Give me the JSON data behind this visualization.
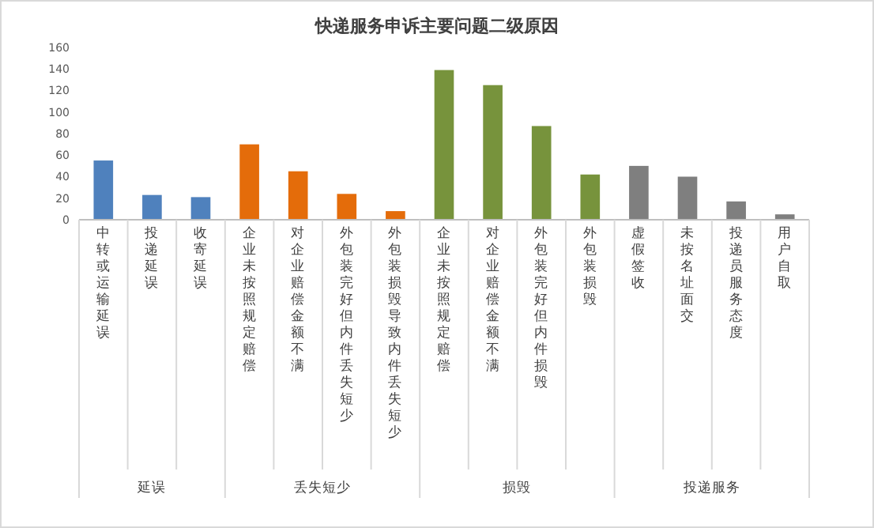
{
  "chart_data": {
    "type": "bar",
    "title": "快递服务申诉主要问题二级原因",
    "categories": [
      "中转或运输延误",
      "投递延误",
      "收寄延误",
      "企业未按照规定赔偿",
      "对企业赔偿金额不满",
      "外包装完好但内件丢失短少",
      "外包装损毁导致内件丢失短少",
      "企业未按照规定赔偿",
      "对企业赔偿金额不满",
      "外包装完好但内件损毁",
      "外包装损毁",
      "虚假签收",
      "未按名址面交",
      "投递员服务态度",
      "用户自取"
    ],
    "values": [
      55,
      23,
      21,
      70,
      45,
      24,
      8,
      139,
      125,
      87,
      42,
      50,
      40,
      17,
      5
    ],
    "colors": [
      "#4f81bd",
      "#4f81bd",
      "#4f81bd",
      "#e46c0a",
      "#e46c0a",
      "#e46c0a",
      "#e46c0a",
      "#77933c",
      "#77933c",
      "#77933c",
      "#77933c",
      "#7f7f7f",
      "#7f7f7f",
      "#7f7f7f",
      "#7f7f7f"
    ],
    "annotations": [
      "延误",
      "丢失短少",
      "损毁",
      "投递服务"
    ],
    "ylim": [
      0,
      160
    ],
    "yticks": [
      0,
      20,
      40,
      60,
      80,
      100,
      120,
      140,
      160
    ],
    "grid": false
  }
}
